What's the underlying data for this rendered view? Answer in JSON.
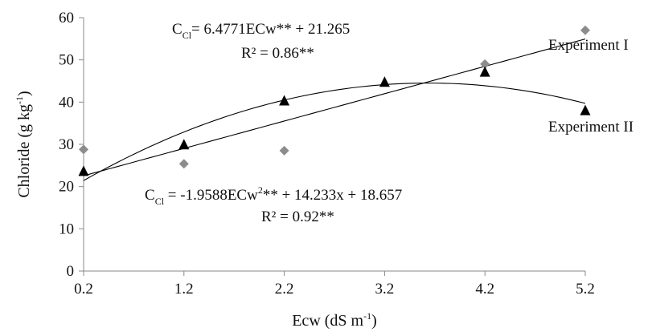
{
  "chart_data": {
    "type": "scatter",
    "x_ticks": [
      "0.2",
      "1.2",
      "2.2",
      "3.2",
      "4.2",
      "5.2"
    ],
    "y_ticks": [
      "0",
      "10",
      "20",
      "30",
      "40",
      "50",
      "60"
    ],
    "xlim": [
      0.2,
      5.2
    ],
    "ylim": [
      0,
      60
    ],
    "xlabel": {
      "main": "Ecw (dS m",
      "sup": "-1",
      "close": ")"
    },
    "ylabel": {
      "main": "Chloride (g kg",
      "sup": "-1",
      "close": ")"
    },
    "grid": false,
    "legend_position": "right",
    "series": [
      {
        "name": "Experiment I",
        "marker": "diamond",
        "color": "#8c8c8c",
        "x": [
          0.2,
          1.2,
          2.2,
          4.2,
          5.2
        ],
        "y": [
          28.8,
          25.4,
          28.5,
          49.0,
          57.0
        ],
        "trendline": {
          "kind": "linear",
          "slope": 6.4771,
          "intercept": 21.265
        },
        "equation": {
          "prefix": "C",
          "sub": "Cl",
          "body": "= 6.4771ECw** + 21.265",
          "r2": "R² = 0.86**"
        }
      },
      {
        "name": "Experiment II",
        "marker": "triangle",
        "color": "#000000",
        "x": [
          0.2,
          1.2,
          2.2,
          3.2,
          4.2,
          5.2
        ],
        "y": [
          23.5,
          29.8,
          40.2,
          44.6,
          47.0,
          37.9
        ],
        "trendline": {
          "kind": "quadratic",
          "a": -1.9588,
          "b": 14.233,
          "c": 18.657
        },
        "equation": {
          "prefix": "C",
          "sub": "Cl",
          "body1": " = -1.9588ECw",
          "sup": "2",
          "body2": "** + 14.233x + 18.657",
          "r2": "R² = 0.92**"
        }
      }
    ]
  }
}
